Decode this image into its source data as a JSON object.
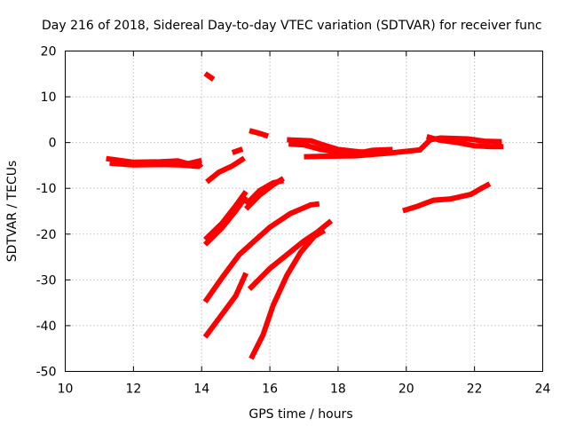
{
  "chart_data": {
    "type": "scatter",
    "title": "Day 216 of 2018, Sidereal Day-to-day VTEC variation (SDTVAR) for receiver func",
    "xlabel": "GPS time / hours",
    "ylabel": "SDTVAR / TECUs",
    "xlim": [
      10,
      24
    ],
    "ylim": [
      -50,
      20
    ],
    "xticks": [
      10,
      12,
      14,
      16,
      18,
      20,
      22,
      24
    ],
    "yticks": [
      -50,
      -40,
      -30,
      -20,
      -10,
      0,
      10,
      20
    ],
    "grid": true,
    "color": "#ff0000",
    "series": [
      {
        "name": "trace-01",
        "points": [
          [
            11.2,
            -3.5
          ],
          [
            12.0,
            -4.3
          ],
          [
            12.8,
            -4.2
          ],
          [
            13.3,
            -4.0
          ],
          [
            13.6,
            -4.6
          ],
          [
            14.0,
            -3.9
          ]
        ]
      },
      {
        "name": "trace-02",
        "points": [
          [
            11.3,
            -4.5
          ],
          [
            12.0,
            -4.9
          ],
          [
            12.8,
            -4.8
          ],
          [
            13.4,
            -4.9
          ],
          [
            13.9,
            -5.2
          ],
          [
            14.0,
            -4.6
          ]
        ]
      },
      {
        "name": "trace-03",
        "points": [
          [
            14.1,
            15.1
          ],
          [
            14.35,
            13.8
          ]
        ]
      },
      {
        "name": "trace-04",
        "points": [
          [
            14.15,
            -8.6
          ],
          [
            14.5,
            -6.5
          ],
          [
            14.9,
            -5.1
          ],
          [
            15.25,
            -3.4
          ]
        ]
      },
      {
        "name": "trace-05",
        "points": [
          [
            14.9,
            -2.2
          ],
          [
            15.2,
            -1.4
          ]
        ]
      },
      {
        "name": "trace-06",
        "points": [
          [
            15.4,
            2.6
          ],
          [
            15.7,
            2.0
          ],
          [
            15.95,
            1.4
          ]
        ]
      },
      {
        "name": "trace-07",
        "points": [
          [
            14.1,
            -21.2
          ],
          [
            14.6,
            -17.6
          ],
          [
            15.0,
            -13.8
          ],
          [
            15.3,
            -10.7
          ]
        ]
      },
      {
        "name": "trace-08",
        "points": [
          [
            14.1,
            -22.3
          ],
          [
            14.6,
            -18.6
          ],
          [
            15.0,
            -14.9
          ],
          [
            15.3,
            -11.8
          ]
        ]
      },
      {
        "name": "trace-09",
        "points": [
          [
            15.3,
            -14.5
          ],
          [
            15.7,
            -11.5
          ],
          [
            16.1,
            -9.2
          ],
          [
            16.4,
            -7.8
          ]
        ]
      },
      {
        "name": "trace-10",
        "points": [
          [
            15.3,
            -13.5
          ],
          [
            15.7,
            -10.5
          ],
          [
            16.1,
            -8.8
          ],
          [
            16.4,
            -8.3
          ]
        ]
      },
      {
        "name": "trace-11",
        "points": [
          [
            14.1,
            -34.8
          ],
          [
            14.6,
            -29.5
          ],
          [
            15.1,
            -24.5
          ],
          [
            15.5,
            -21.8
          ],
          [
            16.0,
            -18.5
          ],
          [
            16.6,
            -15.5
          ],
          [
            17.2,
            -13.6
          ],
          [
            17.45,
            -13.4
          ]
        ]
      },
      {
        "name": "trace-12",
        "points": [
          [
            14.1,
            -42.5
          ],
          [
            14.6,
            -37.5
          ],
          [
            15.0,
            -33.5
          ],
          [
            15.3,
            -28.5
          ]
        ]
      },
      {
        "name": "trace-13",
        "points": [
          [
            15.4,
            -32.0
          ],
          [
            16.0,
            -27.5
          ],
          [
            16.5,
            -24.5
          ],
          [
            17.0,
            -21.5
          ],
          [
            17.4,
            -19.5
          ],
          [
            17.8,
            -17.1
          ]
        ]
      },
      {
        "name": "trace-14",
        "points": [
          [
            15.45,
            -47.2
          ],
          [
            15.8,
            -42.0
          ],
          [
            16.1,
            -35.5
          ],
          [
            16.5,
            -29.0
          ],
          [
            16.9,
            -24.0
          ],
          [
            17.3,
            -20.5
          ],
          [
            17.6,
            -19.2
          ]
        ]
      },
      {
        "name": "trace-15",
        "points": [
          [
            16.5,
            0.6
          ],
          [
            17.2,
            0.4
          ],
          [
            17.6,
            -0.6
          ],
          [
            18.0,
            -1.5
          ],
          [
            18.6,
            -2.0
          ],
          [
            19.1,
            -2.2
          ]
        ]
      },
      {
        "name": "trace-16",
        "points": [
          [
            16.55,
            -0.3
          ],
          [
            17.0,
            -0.5
          ],
          [
            17.5,
            -1.5
          ],
          [
            18.2,
            -2.4
          ],
          [
            18.9,
            -2.6
          ]
        ]
      },
      {
        "name": "trace-17",
        "points": [
          [
            17.0,
            -3.1
          ],
          [
            17.5,
            -3.0
          ],
          [
            18.5,
            -2.9
          ],
          [
            19.5,
            -2.3
          ],
          [
            20.4,
            -1.6
          ],
          [
            20.7,
            0.6
          ],
          [
            21.0,
            1.0
          ],
          [
            21.8,
            0.8
          ],
          [
            22.3,
            0.3
          ],
          [
            22.8,
            0.2
          ]
        ]
      },
      {
        "name": "trace-18",
        "points": [
          [
            18.6,
            -2.3
          ],
          [
            19.0,
            -1.7
          ],
          [
            19.6,
            -1.5
          ]
        ]
      },
      {
        "name": "trace-19",
        "points": [
          [
            20.6,
            1.3
          ],
          [
            21.0,
            0.5
          ],
          [
            21.5,
            0.0
          ],
          [
            22.0,
            -0.7
          ],
          [
            22.5,
            -0.9
          ],
          [
            22.85,
            -0.9
          ]
        ]
      },
      {
        "name": "trace-20",
        "points": [
          [
            19.9,
            -14.9
          ],
          [
            20.3,
            -14.0
          ],
          [
            20.8,
            -12.6
          ],
          [
            21.3,
            -12.3
          ],
          [
            21.9,
            -11.3
          ],
          [
            22.2,
            -10.0
          ],
          [
            22.45,
            -9.0
          ]
        ]
      }
    ]
  }
}
